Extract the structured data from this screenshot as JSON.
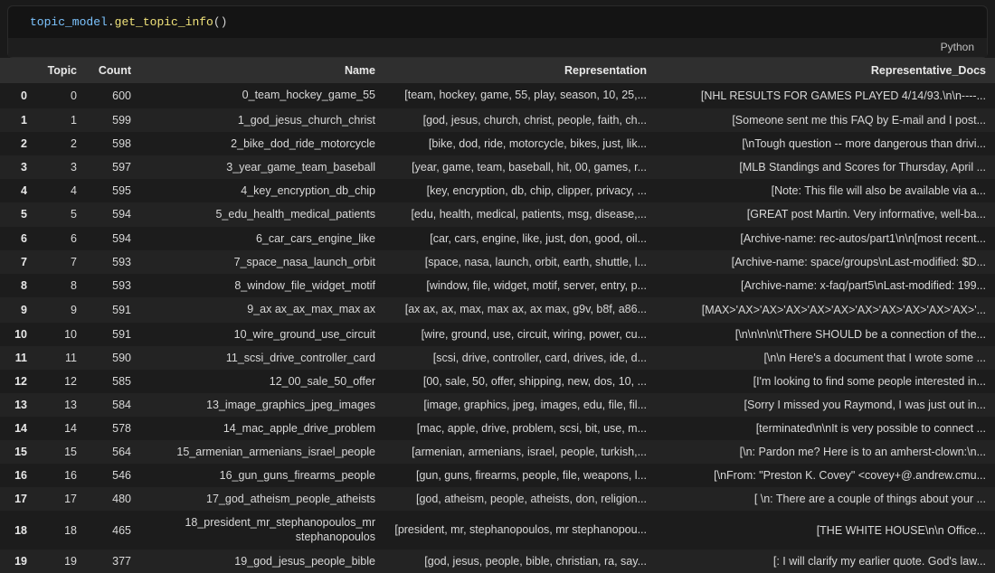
{
  "code": {
    "object": "topic_model",
    "method": "get_topic_info",
    "parens": "()"
  },
  "language_tag": "Python",
  "columns": [
    "",
    "Topic",
    "Count",
    "Name",
    "Representation",
    "Representative_Docs"
  ],
  "rows": [
    {
      "idx": "0",
      "topic": "0",
      "count": "600",
      "name": "0_team_hockey_game_55",
      "repr": "[team, hockey, game, 55, play, season, 10, 25,...",
      "docs": "[NHL RESULTS FOR GAMES PLAYED 4/14/93.\\n\\n----...",
      "wrap": true
    },
    {
      "idx": "1",
      "topic": "1",
      "count": "599",
      "name": "1_god_jesus_church_christ",
      "repr": "[god, jesus, church, christ, people, faith, ch...",
      "docs": "[Someone sent me this FAQ by E-mail and I post..."
    },
    {
      "idx": "2",
      "topic": "2",
      "count": "598",
      "name": "2_bike_dod_ride_motorcycle",
      "repr": "[bike, dod, ride, motorcycle, bikes, just, lik...",
      "docs": "[\\nTough question -- more dangerous than drivi..."
    },
    {
      "idx": "3",
      "topic": "3",
      "count": "597",
      "name": "3_year_game_team_baseball",
      "repr": "[year, game, team, baseball, hit, 00, games, r...",
      "docs": "[MLB Standings and Scores for Thursday, April ..."
    },
    {
      "idx": "4",
      "topic": "4",
      "count": "595",
      "name": "4_key_encryption_db_chip",
      "repr": "[key, encryption, db, chip, clipper, privacy, ...",
      "docs": "[Note: This file will also be available via a..."
    },
    {
      "idx": "5",
      "topic": "5",
      "count": "594",
      "name": "5_edu_health_medical_patients",
      "repr": "[edu, health, medical, patients, msg, disease,...",
      "docs": "[GREAT post Martin. Very informative, well-ba...",
      "wrap": true
    },
    {
      "idx": "6",
      "topic": "6",
      "count": "594",
      "name": "6_car_cars_engine_like",
      "repr": "[car, cars, engine, like, just, don, good, oil...",
      "docs": "[Archive-name: rec-autos/part1\\n\\n[most recent..."
    },
    {
      "idx": "7",
      "topic": "7",
      "count": "593",
      "name": "7_space_nasa_launch_orbit",
      "repr": "[space, nasa, launch, orbit, earth, shuttle, l...",
      "docs": "[Archive-name: space/groups\\nLast-modified: $D..."
    },
    {
      "idx": "8",
      "topic": "8",
      "count": "593",
      "name": "8_window_file_widget_motif",
      "repr": "[window, file, widget, motif, server, entry, p...",
      "docs": "[Archive-name: x-faq/part5\\nLast-modified: 199..."
    },
    {
      "idx": "9",
      "topic": "9",
      "count": "591",
      "name": "9_ax ax_ax_max_max ax",
      "repr": "[ax ax, ax, max, max ax, ax max, g9v, b8f, a86...",
      "docs": "[MAX>'AX>'AX>'AX>'AX>'AX>'AX>'AX>'AX>'AX>'AX>'...",
      "wrap": true
    },
    {
      "idx": "10",
      "topic": "10",
      "count": "591",
      "name": "10_wire_ground_use_circuit",
      "repr": "[wire, ground, use, circuit, wiring, power, cu...",
      "docs": "[\\n\\n\\n\\n\\tThere SHOULD be a connection of the..."
    },
    {
      "idx": "11",
      "topic": "11",
      "count": "590",
      "name": "11_scsi_drive_controller_card",
      "repr": "[scsi, drive, controller, card, drives, ide, d...",
      "docs": "[\\n\\n Here's a document that I wrote some ..."
    },
    {
      "idx": "12",
      "topic": "12",
      "count": "585",
      "name": "12_00_sale_50_offer",
      "repr": "[00, sale, 50, offer, shipping, new, dos, 10, ...",
      "docs": "[I'm looking to find some people interested in..."
    },
    {
      "idx": "13",
      "topic": "13",
      "count": "584",
      "name": "13_image_graphics_jpeg_images",
      "repr": "[image, graphics, jpeg, images, edu, file, fil...",
      "docs": "[Sorry I missed you Raymond, I was just out in..."
    },
    {
      "idx": "14",
      "topic": "14",
      "count": "578",
      "name": "14_mac_apple_drive_problem",
      "repr": "[mac, apple, drive, problem, scsi, bit, use, m...",
      "docs": "[terminated\\n\\nIt is very possible to connect ..."
    },
    {
      "idx": "15",
      "topic": "15",
      "count": "564",
      "name": "15_armenian_armenians_israel_people",
      "repr": "[armenian, armenians, israel, people, turkish,...",
      "docs": "[\\n: Pardon me? Here is to an amherst-clown:\\n..."
    },
    {
      "idx": "16",
      "topic": "16",
      "count": "546",
      "name": "16_gun_guns_firearms_people",
      "repr": "[gun, guns, firearms, people, file, weapons, l...",
      "docs": "[\\nFrom: \"Preston K. Covey\" <covey+@.andrew.cmu..."
    },
    {
      "idx": "17",
      "topic": "17",
      "count": "480",
      "name": "17_god_atheism_people_atheists",
      "repr": "[god, atheism, people, atheists, don, religion...",
      "docs": "[ \\n: There are a couple of things about your ..."
    },
    {
      "idx": "18",
      "topic": "18",
      "count": "465",
      "name": "18_president_mr_stephanopoulos_mr stephanopoulos",
      "repr": "[president, mr, stephanopoulos, mr stephanopou...",
      "docs": "[THE WHITE HOUSE\\n\\n Office...",
      "wrap": true
    },
    {
      "idx": "19",
      "topic": "19",
      "count": "377",
      "name": "19_god_jesus_people_bible",
      "repr": "[god, jesus, people, bible, christian, ra, say...",
      "docs": "[: I will clarify my earlier quote. God's law..."
    }
  ]
}
